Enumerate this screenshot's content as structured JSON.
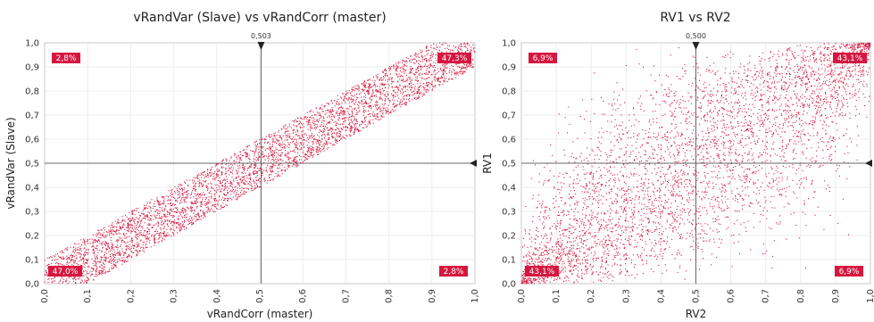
{
  "chart_data": [
    {
      "type": "scatter",
      "title": "vRandVar (Slave) vs vRandCorr (master)",
      "xlabel": "vRandCorr (master)",
      "ylabel": "vRandVar (Slave)",
      "xlim": [
        0,
        1
      ],
      "ylim": [
        0,
        1
      ],
      "x_ticks": [
        "0,0",
        "0,1",
        "0,2",
        "0,3",
        "0,4",
        "0,5",
        "0,6",
        "0,7",
        "0,8",
        "0,9",
        "1,0"
      ],
      "y_ticks": [
        "0,0",
        "0,1",
        "0,2",
        "0,3",
        "0,4",
        "0,5",
        "0,6",
        "0,7",
        "0,8",
        "0,9",
        "1,0"
      ],
      "grid": true,
      "point_color": "#d6163f",
      "x_reference": {
        "value": 0.503,
        "label": "0,503"
      },
      "y_reference": {
        "value": 0.5,
        "label": ""
      },
      "quadrants": {
        "top_left": "2,8%",
        "top_right": "47,3%",
        "bottom_left": "47,0%",
        "bottom_right": "2,8%"
      },
      "distribution": {
        "relation": "y = x + uniform noise",
        "band_half_width": 0.1,
        "n_points": 4500
      }
    },
    {
      "type": "scatter",
      "title": "RV1 vs RV2",
      "xlabel": "RV2",
      "ylabel": "RV1",
      "xlim": [
        0,
        1
      ],
      "ylim": [
        0,
        1
      ],
      "x_ticks": [
        "0,0",
        "0,1",
        "0,2",
        "0,3",
        "0,4",
        "0,5",
        "0,6",
        "0,7",
        "0,8",
        "0,9",
        "1,0"
      ],
      "y_ticks": [
        "0,0",
        "0,1",
        "0,2",
        "0,3",
        "0,4",
        "0,5",
        "0,6",
        "0,7",
        "0,8",
        "0,9",
        "1,0"
      ],
      "grid": true,
      "point_color": "#d6163f",
      "x_reference": {
        "value": 0.5,
        "label": "0,500"
      },
      "y_reference": {
        "value": 0.5,
        "label": ""
      },
      "quadrants": {
        "top_left": "6,9%",
        "top_right": "43,1%",
        "bottom_left": "43,1%",
        "bottom_right": "6,9%"
      },
      "distribution": {
        "relation": "correlated uniform pair",
        "correlation": 0.8,
        "n_points": 4500
      }
    }
  ]
}
